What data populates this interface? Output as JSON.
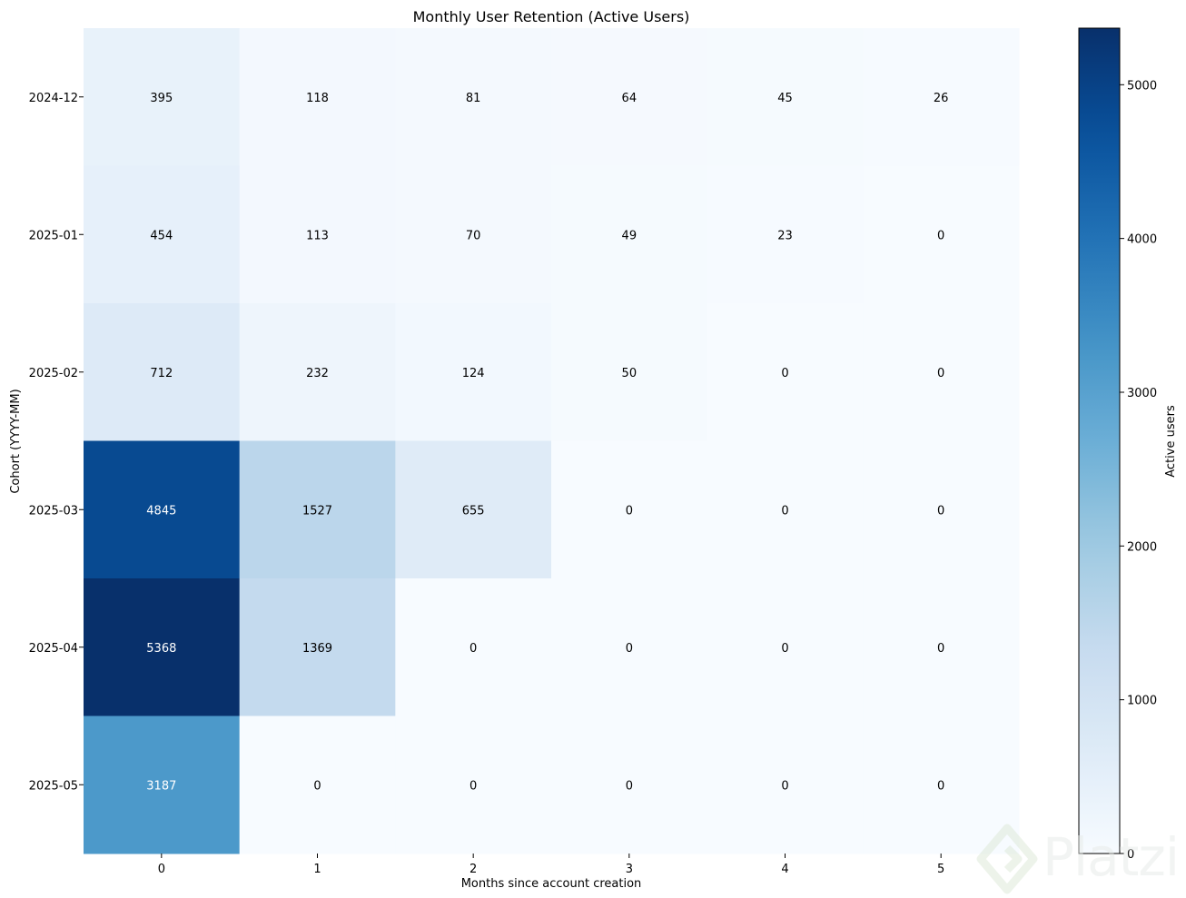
{
  "chart_data": {
    "type": "heatmap",
    "title": "Monthly User Retention (Active Users)",
    "xlabel": "Months since account creation",
    "ylabel": "Cohort (YYYY-MM)",
    "x_categories": [
      "0",
      "1",
      "2",
      "3",
      "4",
      "5"
    ],
    "y_categories": [
      "2024-12",
      "2025-01",
      "2025-02",
      "2025-03",
      "2025-04",
      "2025-05"
    ],
    "values": [
      [
        395,
        118,
        81,
        64,
        45,
        26
      ],
      [
        454,
        113,
        70,
        49,
        23,
        0
      ],
      [
        712,
        232,
        124,
        50,
        0,
        0
      ],
      [
        4845,
        1527,
        655,
        0,
        0,
        0
      ],
      [
        5368,
        1369,
        0,
        0,
        0,
        0
      ],
      [
        3187,
        0,
        0,
        0,
        0,
        0
      ]
    ],
    "colormap": "Blues",
    "vmin": 0,
    "vmax": 5368,
    "colorbar": {
      "label": "Active users",
      "ticks": [
        0,
        1000,
        2000,
        3000,
        4000,
        5000
      ]
    },
    "grid": false,
    "annotations": "cell values"
  },
  "watermark": {
    "text": "Platzi",
    "icon": "platzi-logo-icon",
    "color": "#e7ebe8"
  }
}
